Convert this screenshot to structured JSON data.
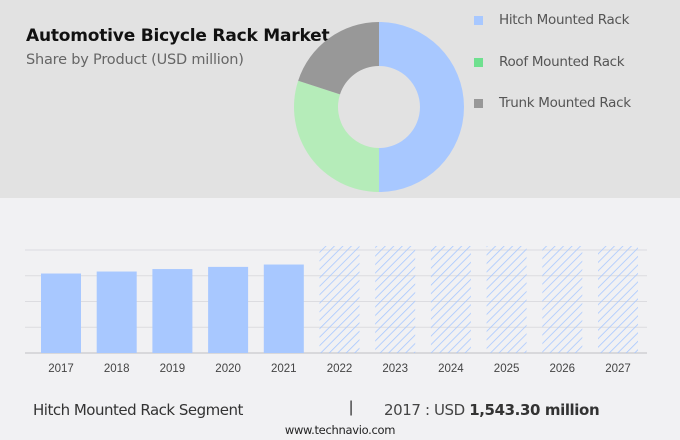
{
  "header": {
    "title": "Automotive Bicycle Rack Market",
    "subtitle": "Share by Product (USD million)"
  },
  "legend": [
    {
      "label": "Hitch Mounted Rack",
      "color": "#a8c8ff"
    },
    {
      "label": "Roof Mounted Rack",
      "color": "#6fe08f"
    },
    {
      "label": "Trunk Mounted Rack",
      "color": "#989898"
    }
  ],
  "footer": {
    "segment": "Hitch Mounted Rack Segment",
    "separator": "|",
    "year_prefix": "2017 : USD",
    "value": "1,543.30 million",
    "source": "www.technavio.com"
  },
  "chart_data": [
    {
      "type": "pie",
      "title": "Automotive Bicycle Rack Market",
      "subtitle": "Share by Product (USD million)",
      "donut": true,
      "categories": [
        "Hitch Mounted Rack",
        "Roof Mounted Rack",
        "Trunk Mounted Rack"
      ],
      "values": [
        50,
        30,
        20
      ],
      "colors": [
        "#a8c8ff",
        "#b5ecb9",
        "#989898"
      ],
      "legend_position": "right"
    },
    {
      "type": "bar",
      "title": "Hitch Mounted Rack Segment",
      "categories": [
        "2017",
        "2018",
        "2019",
        "2020",
        "2021",
        "2022",
        "2023",
        "2024",
        "2025",
        "2026",
        "2027"
      ],
      "values": [
        1543.3,
        1582,
        1630,
        1672,
        1718,
        null,
        null,
        null,
        null,
        null,
        null
      ],
      "forecast_years": [
        "2022",
        "2023",
        "2024",
        "2025",
        "2026",
        "2027"
      ],
      "forecast_style": "hatched",
      "xlabel": "",
      "ylabel": "",
      "ylim": [
        0,
        2000
      ],
      "grid": true,
      "bar_color": "#a8c8ff"
    }
  ]
}
